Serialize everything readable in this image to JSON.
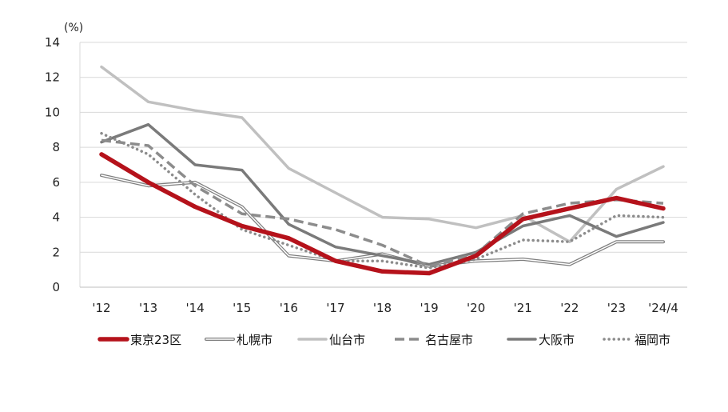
{
  "chart_data": {
    "type": "line",
    "unit_label": "(%)",
    "categories": [
      "'12",
      "'13",
      "'14",
      "'15",
      "'16",
      "'17",
      "'18",
      "'19",
      "'20",
      "'21",
      "'22",
      "'23",
      "'24/4"
    ],
    "ylim": [
      0,
      14
    ],
    "yticks": [
      0,
      2,
      4,
      6,
      8,
      10,
      12,
      14
    ],
    "grid": true,
    "legend_position": "bottom",
    "series": [
      {
        "name": "東京23区",
        "color": "#b5121b",
        "style": "thick",
        "values": [
          7.6,
          6.0,
          4.6,
          3.5,
          2.8,
          1.5,
          0.9,
          0.8,
          1.8,
          3.9,
          4.5,
          5.1,
          4.5
        ]
      },
      {
        "name": "札幌市",
        "color": "#7f7f7f",
        "style": "double",
        "values": [
          6.4,
          5.8,
          6.0,
          4.6,
          1.8,
          1.5,
          1.9,
          1.2,
          1.5,
          1.6,
          1.3,
          2.6,
          2.6
        ]
      },
      {
        "name": "仙台市",
        "color": "#c0c0c0",
        "style": "solid",
        "values": [
          12.6,
          10.6,
          10.1,
          9.7,
          6.8,
          5.4,
          4.0,
          3.9,
          3.4,
          4.1,
          2.6,
          5.6,
          6.9
        ]
      },
      {
        "name": "名古屋市",
        "color": "#8c8c8c",
        "style": "dashed",
        "values": [
          8.4,
          8.1,
          5.8,
          4.2,
          3.9,
          3.3,
          2.4,
          1.2,
          1.9,
          4.2,
          4.8,
          5.0,
          4.8
        ]
      },
      {
        "name": "大阪市",
        "color": "#7a7a7a",
        "style": "solid-medium",
        "values": [
          8.3,
          9.3,
          7.0,
          6.7,
          3.6,
          2.3,
          1.8,
          1.3,
          2.0,
          3.5,
          4.1,
          2.9,
          3.7
        ]
      },
      {
        "name": "福岡市",
        "color": "#8c8c8c",
        "style": "dotted",
        "values": [
          8.8,
          7.6,
          5.3,
          3.3,
          2.4,
          1.5,
          1.5,
          1.1,
          1.6,
          2.7,
          2.6,
          4.1,
          4.0
        ]
      }
    ]
  }
}
